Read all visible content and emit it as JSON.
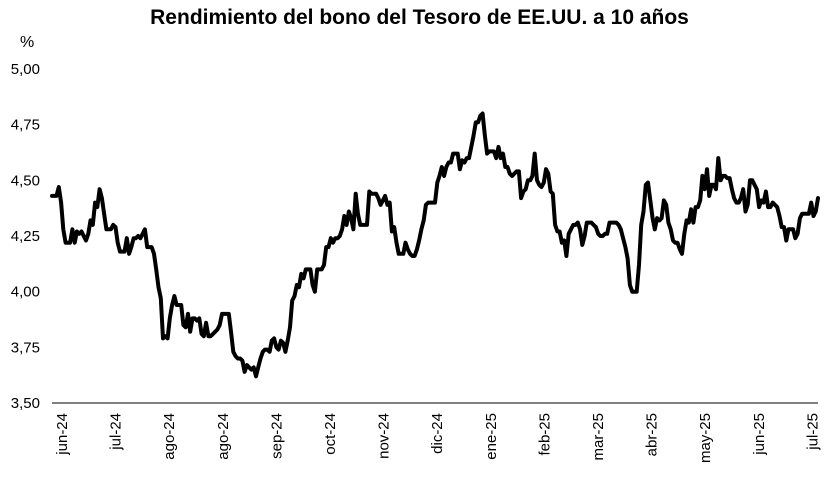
{
  "chart_data": {
    "type": "line",
    "title": "Rendimiento del bono del Tesoro de EE.UU. a 10 años",
    "ylabel": "%",
    "xlabel": "",
    "ylim": [
      3.5,
      5.0
    ],
    "yticks": [
      "5,00",
      "4,75",
      "4,50",
      "4,25",
      "4,00",
      "3,75",
      "3,50"
    ],
    "xtick_labels": [
      "jun-24",
      "jul-24",
      "ago-24",
      "ago-24",
      "sep-24",
      "oct-24",
      "nov-24",
      "dic-24",
      "ene-25",
      "feb-25",
      "mar-25",
      "abr-25",
      "may-25",
      "jun-25",
      "jul-25"
    ],
    "grid": false,
    "legend": "none",
    "line_color": "#000000",
    "series": [
      {
        "values": [
          4.43,
          4.43,
          4.43,
          4.47,
          4.4,
          4.28,
          4.22,
          4.22,
          4.22,
          4.28,
          4.22,
          4.27,
          4.26,
          4.27,
          4.25,
          4.23,
          4.26,
          4.32,
          4.3,
          4.4,
          4.38,
          4.46,
          4.42,
          4.35,
          4.28,
          4.28,
          4.28,
          4.3,
          4.29,
          4.22,
          4.18,
          4.18,
          4.18,
          4.24,
          4.17,
          4.2,
          4.24,
          4.24,
          4.25,
          4.24,
          4.26,
          4.28,
          4.2,
          4.2,
          4.2,
          4.17,
          4.1,
          4.02,
          3.97,
          3.79,
          3.8,
          3.79,
          3.88,
          3.94,
          3.98,
          3.94,
          3.94,
          3.94,
          3.85,
          3.84,
          3.9,
          3.82,
          3.88,
          3.88,
          3.87,
          3.88,
          3.81,
          3.8,
          3.86,
          3.8,
          3.8,
          3.81,
          3.82,
          3.83,
          3.85,
          3.9,
          3.9,
          3.9,
          3.9,
          3.82,
          3.73,
          3.71,
          3.7,
          3.7,
          3.69,
          3.64,
          3.67,
          3.66,
          3.65,
          3.66,
          3.62,
          3.66,
          3.7,
          3.73,
          3.74,
          3.74,
          3.73,
          3.78,
          3.79,
          3.75,
          3.74,
          3.78,
          3.77,
          3.73,
          3.78,
          3.84,
          3.96,
          3.98,
          4.03,
          4.02,
          4.08,
          4.06,
          4.1,
          4.1,
          4.1,
          4.03,
          4.0,
          4.1,
          4.1,
          4.1,
          4.12,
          4.2,
          4.2,
          4.24,
          4.22,
          4.24,
          4.24,
          4.25,
          4.28,
          4.34,
          4.3,
          4.36,
          4.33,
          4.28,
          4.44,
          4.35,
          4.3,
          4.3,
          4.3,
          4.3,
          4.45,
          4.44,
          4.44,
          4.44,
          4.42,
          4.39,
          4.41,
          4.43,
          4.39,
          4.4,
          4.27,
          4.29,
          4.22,
          4.17,
          4.17,
          4.17,
          4.22,
          4.19,
          4.17,
          4.16,
          4.16,
          4.19,
          4.23,
          4.28,
          4.32,
          4.39,
          4.4,
          4.4,
          4.4,
          4.4,
          4.49,
          4.52,
          4.56,
          4.52,
          4.56,
          4.58,
          4.58,
          4.62,
          4.62,
          4.62,
          4.55,
          4.59,
          4.58,
          4.6,
          4.6,
          4.65,
          4.7,
          4.76,
          4.76,
          4.79,
          4.8,
          4.7,
          4.62,
          4.63,
          4.63,
          4.63,
          4.6,
          4.65,
          4.6,
          4.62,
          4.56,
          4.56,
          4.53,
          4.52,
          4.53,
          4.54,
          4.54,
          4.42,
          4.45,
          4.46,
          4.5,
          4.5,
          4.52,
          4.62,
          4.5,
          4.48,
          4.47,
          4.49,
          4.55,
          4.53,
          4.45,
          4.44,
          4.3,
          4.27,
          4.27,
          4.22,
          4.23,
          4.16,
          4.26,
          4.28,
          4.3,
          4.3,
          4.31,
          4.28,
          4.21,
          4.25,
          4.31,
          4.31,
          4.31,
          4.3,
          4.29,
          4.26,
          4.25,
          4.25,
          4.26,
          4.26,
          4.31,
          4.31,
          4.31,
          4.31,
          4.3,
          4.28,
          4.24,
          4.2,
          4.15,
          4.03,
          4.0,
          4.0,
          4.0,
          4.12,
          4.3,
          4.36,
          4.48,
          4.49,
          4.41,
          4.33,
          4.28,
          4.33,
          4.32,
          4.33,
          4.41,
          4.39,
          4.31,
          4.28,
          4.23,
          4.22,
          4.22,
          4.19,
          4.17,
          4.26,
          4.32,
          4.31,
          4.37,
          4.31,
          4.38,
          4.38,
          4.41,
          4.52,
          4.46,
          4.55,
          4.43,
          4.48,
          4.48,
          4.46,
          4.6,
          4.5,
          4.52,
          4.52,
          4.51,
          4.51,
          4.46,
          4.42,
          4.4,
          4.4,
          4.42,
          4.46,
          4.36,
          4.39,
          4.5,
          4.5,
          4.48,
          4.46,
          4.38,
          4.41,
          4.4,
          4.45,
          4.38,
          4.38,
          4.4,
          4.39,
          4.38,
          4.34,
          4.29,
          4.29,
          4.23,
          4.28,
          4.28,
          4.28,
          4.24,
          4.26,
          4.33,
          4.35,
          4.35,
          4.35,
          4.35,
          4.4,
          4.34,
          4.36,
          4.42
        ]
      }
    ]
  }
}
